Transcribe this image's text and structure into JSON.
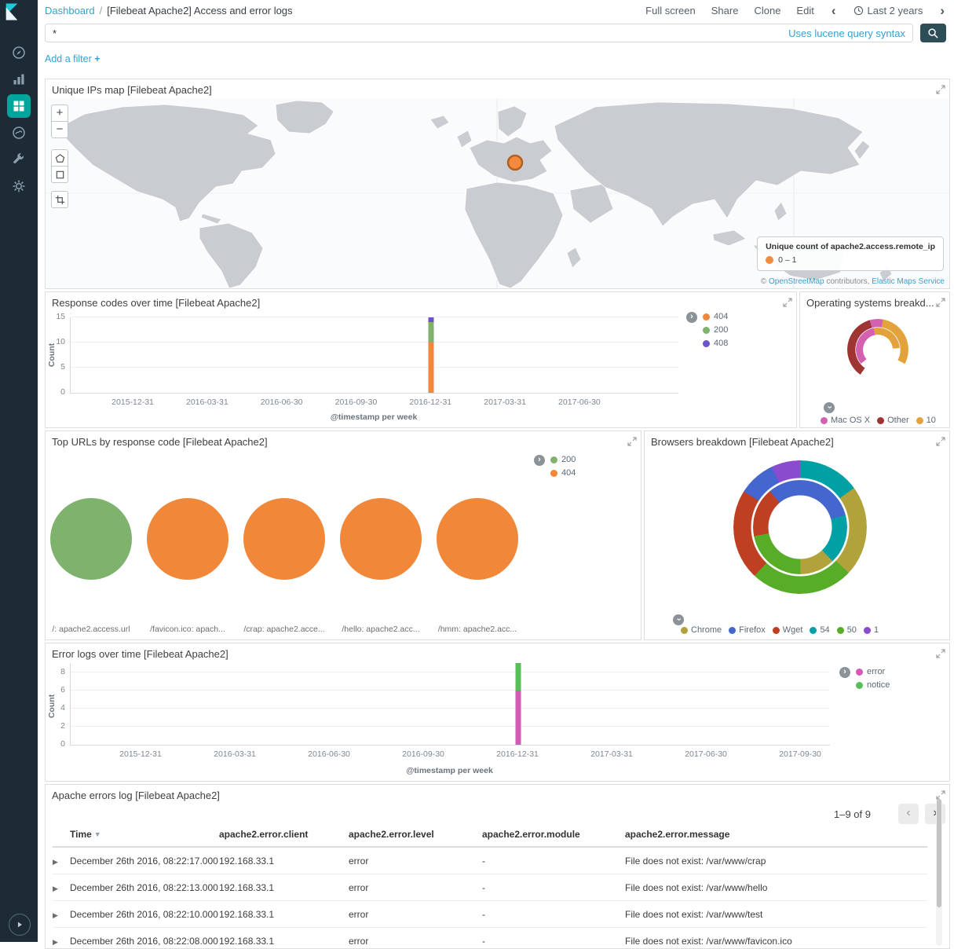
{
  "app": {
    "topbar": {
      "breadcrumb_root": "Dashboard",
      "breadcrumb_sep": "/",
      "breadcrumb_title": "[Filebeat Apache2] Access and error logs",
      "actions": [
        "Full screen",
        "Share",
        "Clone",
        "Edit"
      ],
      "time_range": "Last 2 years"
    },
    "query": {
      "value": "*",
      "hint": "Uses lucene query syntax"
    },
    "filter": {
      "add_label": "Add a filter",
      "plus": "+"
    },
    "sidebar_icons": [
      "discover-compass",
      "visualize-bars",
      "dashboard-grid",
      "timelion",
      "dev-tools-wrench",
      "management-gear",
      "collapse-play"
    ],
    "map_tool_icons": [
      "zoom-in",
      "zoom-out",
      "draw-polygon",
      "draw-rectangle",
      "crop"
    ],
    "colors": {
      "link": "#38a0c9",
      "sidebar_bg": "#1d2b36",
      "active_nav": "#00a69b",
      "search_button_bg": "#2e4e57",
      "map_marker": "#f28a40"
    }
  },
  "map_panel": {
    "title": "Unique IPs map [Filebeat Apache2]",
    "legend_title": "Unique count of apache2.access.remote_ip",
    "legend_value": "0 – 1",
    "legend_dot_color": "#f28a40",
    "attribution_copy": "©",
    "attribution_link1": "OpenStreetMap",
    "attribution_mid": "contributors,",
    "attribution_link2": "Elastic Maps Service"
  },
  "chart_data": [
    {
      "id": "response-codes",
      "type": "bar",
      "title": "Response codes over time [Filebeat Apache2]",
      "xlabel": "@timestamp per week",
      "ylabel": "Count",
      "x": [
        "2015-12-31",
        "2016-03-31",
        "2016-06-30",
        "2016-09-30",
        "2016-12-31",
        "2017-03-31",
        "2017-06-30"
      ],
      "y_ticks": [
        0,
        5,
        10,
        15
      ],
      "ylim": [
        0,
        15
      ],
      "grid": true,
      "legend_position": "right",
      "colors": {
        "404": "#f18738",
        "200": "#7eb26d",
        "408": "#6c53c9"
      },
      "bars": [
        {
          "x": "2016-12-31",
          "stack": [
            {
              "name": "404",
              "value": 10
            },
            {
              "name": "200",
              "value": 4
            },
            {
              "name": "408",
              "value": 1
            }
          ]
        }
      ],
      "legend": [
        {
          "label": "404",
          "color": "#f18738"
        },
        {
          "label": "200",
          "color": "#7eb26d"
        },
        {
          "label": "408",
          "color": "#6c53c9"
        }
      ]
    },
    {
      "id": "os-breakdown",
      "type": "donut",
      "title": "Operating systems breakd...",
      "legend_position": "bottom",
      "outer_start": 215,
      "inner_start": 230,
      "outer_ring": [
        {
          "color": "#9e3533",
          "pct": 36
        },
        {
          "color": "#d460b0",
          "pct": 7
        },
        {
          "color": "#e2a33d",
          "pct": 30
        }
      ],
      "inner_ring": [
        {
          "color": "#d460b0",
          "pct": 33
        },
        {
          "color": "#e2a33d",
          "pct": 27
        }
      ],
      "legend": [
        {
          "label": "Mac OS X",
          "color": "#d460b0"
        },
        {
          "label": "Other",
          "color": "#9e3533"
        },
        {
          "label": "10",
          "color": "#e2a33d"
        }
      ]
    },
    {
      "id": "top-urls",
      "type": "pie",
      "title": "Top URLs by response code [Filebeat Apache2]",
      "legend_position": "right",
      "legend": [
        {
          "label": "200",
          "color": "#7eb26d"
        },
        {
          "label": "404",
          "color": "#f18738"
        }
      ],
      "pies": [
        {
          "label": "/: apache2.access.url",
          "slices": [
            {
              "name": "200",
              "color": "#7eb26d",
              "pct": 100
            }
          ]
        },
        {
          "label": "/favicon.ico: apach...",
          "slices": [
            {
              "name": "404",
              "color": "#f18738",
              "pct": 100
            }
          ]
        },
        {
          "label": "/crap: apache2.acce...",
          "slices": [
            {
              "name": "404",
              "color": "#f18738",
              "pct": 100
            }
          ]
        },
        {
          "label": "/hello: apache2.acc...",
          "slices": [
            {
              "name": "404",
              "color": "#f18738",
              "pct": 100
            }
          ]
        },
        {
          "label": "/hmm: apache2.acc...",
          "slices": [
            {
              "name": "404",
              "color": "#f18738",
              "pct": 100
            }
          ]
        }
      ]
    },
    {
      "id": "browsers",
      "type": "donut",
      "title": "Browsers breakdown [Filebeat Apache2]",
      "legend_position": "bottom",
      "outer_start": 0,
      "inner_start": -40,
      "outer_ring": [
        {
          "color": "#00a0a5",
          "pct": 15
        },
        {
          "color": "#b2a23c",
          "pct": 22
        },
        {
          "color": "#57ad27",
          "pct": 25
        },
        {
          "color": "#bf3f22",
          "pct": 22
        },
        {
          "color": "#4566cf",
          "pct": 9
        },
        {
          "color": "#8a4bcf",
          "pct": 7
        }
      ],
      "inner_ring": [
        {
          "color": "#4566cf",
          "pct": 32
        },
        {
          "color": "#00a0a5",
          "pct": 17
        },
        {
          "color": "#b2a23c",
          "pct": 12
        },
        {
          "color": "#57ad27",
          "pct": 22
        },
        {
          "color": "#bf3f22",
          "pct": 17
        }
      ],
      "legend": [
        {
          "label": "Chrome",
          "color": "#b2a23c"
        },
        {
          "label": "Firefox",
          "color": "#4566cf"
        },
        {
          "label": "Wget",
          "color": "#bf3f22"
        },
        {
          "label": "54",
          "color": "#00a0a5"
        },
        {
          "label": "50",
          "color": "#57ad27"
        },
        {
          "label": "1",
          "color": "#8a4bcf"
        }
      ]
    },
    {
      "id": "error-logs",
      "type": "bar",
      "title": "Error logs over time [Filebeat Apache2]",
      "xlabel": "@timestamp per week",
      "ylabel": "Count",
      "x": [
        "2015-12-31",
        "2016-03-31",
        "2016-06-30",
        "2016-09-30",
        "2016-12-31",
        "2017-03-31",
        "2017-06-30",
        "2017-09-30"
      ],
      "y_ticks": [
        0,
        2,
        4,
        6,
        8
      ],
      "ylim": [
        0,
        9
      ],
      "grid": true,
      "legend_position": "right",
      "colors": {
        "error": "#d35ab6",
        "notice": "#57bf57"
      },
      "bars": [
        {
          "x": "2016-12-31",
          "stack": [
            {
              "name": "error",
              "value": 6
            },
            {
              "name": "notice",
              "value": 3
            }
          ]
        }
      ],
      "legend": [
        {
          "label": "error",
          "color": "#d35ab6"
        },
        {
          "label": "notice",
          "color": "#57bf57"
        }
      ]
    }
  ],
  "errors_table": {
    "title": "Apache errors log [Filebeat Apache2]",
    "pagination": "1–9 of 9",
    "columns": [
      "Time",
      "apache2.error.client",
      "apache2.error.level",
      "apache2.error.module",
      "apache2.error.message"
    ],
    "rows": [
      {
        "time": "December 26th 2016, 08:22:17.000",
        "client": "192.168.33.1",
        "level": "error",
        "module": "-",
        "message": "File does not exist: /var/www/crap"
      },
      {
        "time": "December 26th 2016, 08:22:13.000",
        "client": "192.168.33.1",
        "level": "error",
        "module": "-",
        "message": "File does not exist: /var/www/hello"
      },
      {
        "time": "December 26th 2016, 08:22:10.000",
        "client": "192.168.33.1",
        "level": "error",
        "module": "-",
        "message": "File does not exist: /var/www/test"
      },
      {
        "time": "December 26th 2016, 08:22:08.000",
        "client": "192.168.33.1",
        "level": "error",
        "module": "-",
        "message": "File does not exist: /var/www/favicon.ico"
      }
    ]
  }
}
